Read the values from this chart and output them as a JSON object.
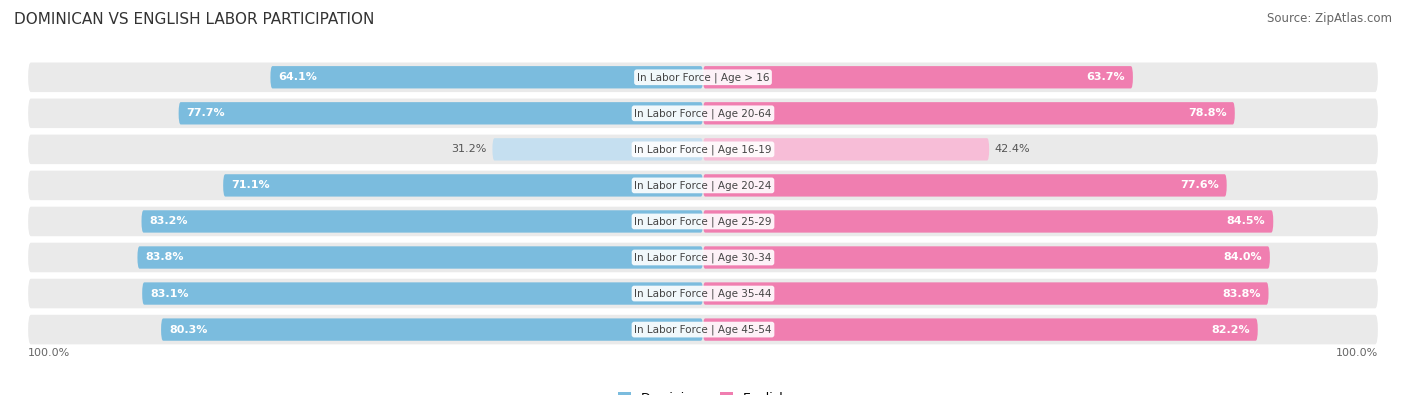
{
  "title": "DOMINICAN VS ENGLISH LABOR PARTICIPATION",
  "source": "Source: ZipAtlas.com",
  "categories": [
    "In Labor Force | Age > 16",
    "In Labor Force | Age 20-64",
    "In Labor Force | Age 16-19",
    "In Labor Force | Age 20-24",
    "In Labor Force | Age 25-29",
    "In Labor Force | Age 30-34",
    "In Labor Force | Age 35-44",
    "In Labor Force | Age 45-54"
  ],
  "dominican_values": [
    64.1,
    77.7,
    31.2,
    71.1,
    83.2,
    83.8,
    83.1,
    80.3
  ],
  "english_values": [
    63.7,
    78.8,
    42.4,
    77.6,
    84.5,
    84.0,
    83.8,
    82.2
  ],
  "dominican_color": "#7BBCDE",
  "dominican_color_light": "#C5DFF0",
  "english_color": "#F07EB0",
  "english_color_light": "#F7BDD7",
  "row_bg_color": "#EAEAEA",
  "title_fontsize": 11,
  "source_fontsize": 8.5,
  "value_fontsize": 8,
  "cat_fontsize": 7.5,
  "axis_label": "100.0%",
  "max_val": 100.0
}
